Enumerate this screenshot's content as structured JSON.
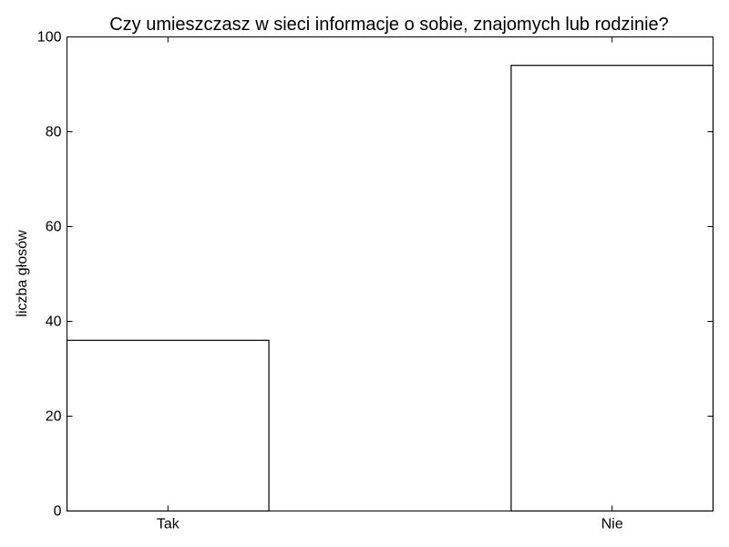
{
  "chart_data": {
    "type": "bar",
    "title": "Czy umieszczasz w sieci informacje o sobie, znajomych lub rodzinie?",
    "xlabel": "",
    "ylabel": "liczba głosów",
    "categories": [
      "Tak",
      "Nie"
    ],
    "values": [
      36,
      94
    ],
    "ylim": [
      0,
      100
    ],
    "yticks": [
      0,
      20,
      40,
      60,
      80,
      100
    ],
    "grid": false,
    "bar_fill": "#ffffff",
    "bar_stroke": "#000000"
  }
}
